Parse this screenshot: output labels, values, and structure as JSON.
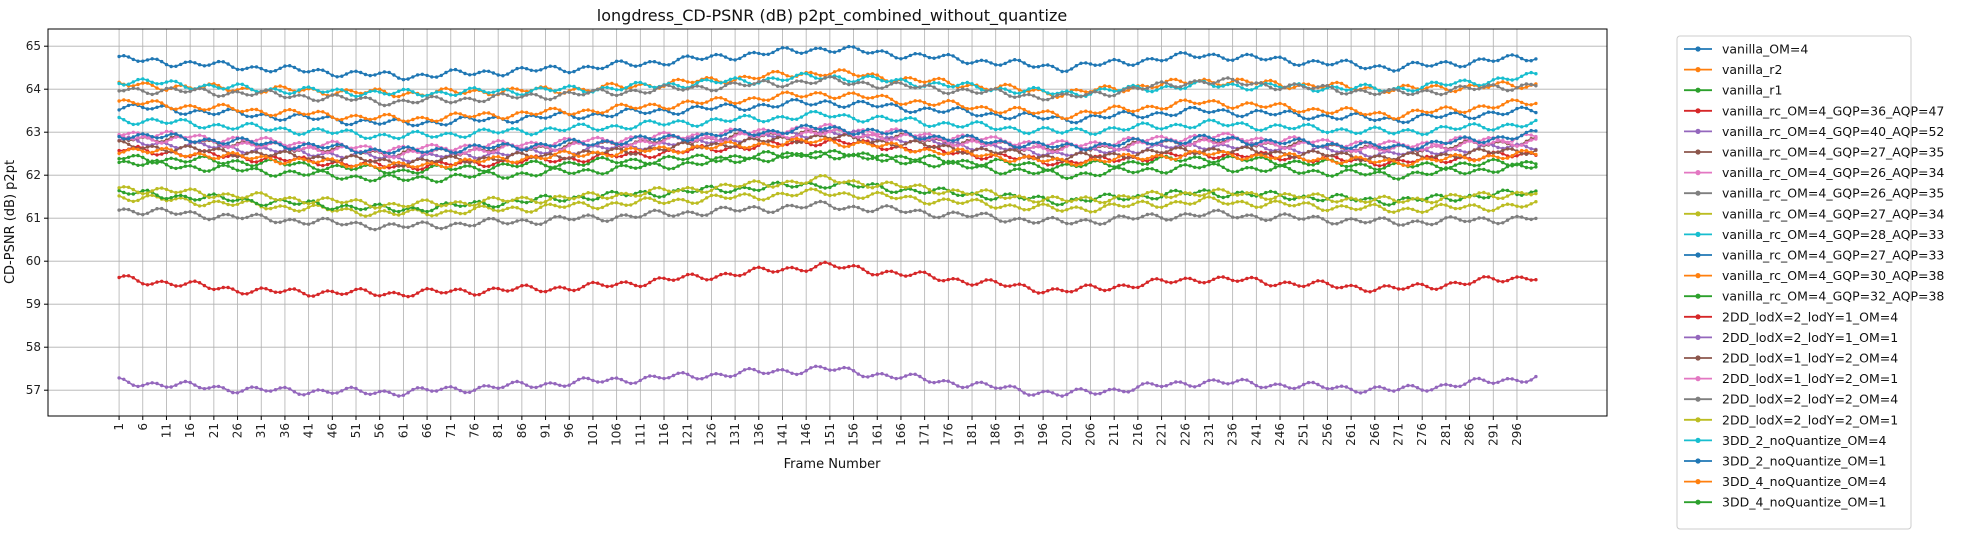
{
  "chart_data": {
    "type": "line",
    "title": "longdress_CD-PSNR (dB) p2pt_combined_without_quantize",
    "xlabel": "Frame Number",
    "ylabel": "CD-PSNR (dB) p2pt",
    "xlim": [
      -14,
      315
    ],
    "ylim": [
      56.4,
      65.4
    ],
    "x_ticks": [
      1,
      6,
      11,
      16,
      21,
      26,
      31,
      36,
      41,
      46,
      51,
      56,
      61,
      66,
      71,
      76,
      81,
      86,
      91,
      96,
      101,
      106,
      111,
      116,
      121,
      126,
      131,
      136,
      141,
      146,
      151,
      156,
      161,
      166,
      171,
      176,
      181,
      186,
      191,
      196,
      201,
      206,
      211,
      216,
      221,
      226,
      231,
      236,
      241,
      246,
      251,
      256,
      261,
      266,
      271,
      276,
      281,
      286,
      291,
      296
    ],
    "y_ticks": [
      57,
      58,
      59,
      60,
      61,
      62,
      63,
      64,
      65
    ],
    "grid": true,
    "legend_position": "outside-right",
    "frame_range": [
      1,
      300
    ],
    "series": [
      {
        "name": "vanilla_OM=4",
        "color": "#1f77b4",
        "values": [
          [
            1,
            64.7
          ],
          [
            30,
            64.5
          ],
          [
            60,
            64.3
          ],
          [
            100,
            64.5
          ],
          [
            150,
            64.95
          ],
          [
            200,
            64.5
          ],
          [
            230,
            64.8
          ],
          [
            270,
            64.5
          ],
          [
            300,
            64.75
          ]
        ]
      },
      {
        "name": "vanilla_r2",
        "color": "#ff7f0e",
        "values": [
          [
            1,
            64.1
          ],
          [
            30,
            64.0
          ],
          [
            60,
            63.9
          ],
          [
            100,
            64.0
          ],
          [
            150,
            64.4
          ],
          [
            200,
            63.9
          ],
          [
            230,
            64.2
          ],
          [
            270,
            64.0
          ],
          [
            300,
            64.1
          ]
        ]
      },
      {
        "name": "vanilla_r1",
        "color": "#2ca02c",
        "values": [
          [
            1,
            62.4
          ],
          [
            30,
            62.3
          ],
          [
            60,
            62.1
          ],
          [
            100,
            62.3
          ],
          [
            150,
            62.5
          ],
          [
            200,
            62.2
          ],
          [
            230,
            62.4
          ],
          [
            270,
            62.2
          ],
          [
            300,
            62.3
          ]
        ]
      },
      {
        "name": "vanilla_rc_OM=4_GQP=36_AQP=47",
        "color": "#d62728",
        "values": [
          [
            1,
            59.6
          ],
          [
            30,
            59.3
          ],
          [
            60,
            59.25
          ],
          [
            100,
            59.4
          ],
          [
            150,
            59.9
          ],
          [
            200,
            59.3
          ],
          [
            230,
            59.6
          ],
          [
            270,
            59.35
          ],
          [
            300,
            59.65
          ]
        ]
      },
      {
        "name": "vanilla_rc_OM=4_GQP=40_AQP=52",
        "color": "#9467bd",
        "values": [
          [
            1,
            57.2
          ],
          [
            30,
            57.0
          ],
          [
            60,
            56.95
          ],
          [
            100,
            57.2
          ],
          [
            150,
            57.5
          ],
          [
            200,
            56.9
          ],
          [
            230,
            57.2
          ],
          [
            270,
            57.0
          ],
          [
            300,
            57.3
          ]
        ]
      },
      {
        "name": "vanilla_rc_OM=4_GQP=27_AQP=35",
        "color": "#8c564b",
        "values": [
          [
            1,
            62.9
          ],
          [
            30,
            62.7
          ],
          [
            60,
            62.5
          ],
          [
            100,
            62.7
          ],
          [
            150,
            63.0
          ],
          [
            200,
            62.6
          ],
          [
            230,
            62.8
          ],
          [
            270,
            62.6
          ],
          [
            300,
            62.8
          ]
        ]
      },
      {
        "name": "vanilla_rc_OM=4_GQP=26_AQP=34",
        "color": "#e377c2",
        "values": [
          [
            1,
            63.0
          ],
          [
            30,
            62.8
          ],
          [
            60,
            62.6
          ],
          [
            100,
            62.8
          ],
          [
            150,
            63.1
          ],
          [
            200,
            62.7
          ],
          [
            230,
            62.9
          ],
          [
            270,
            62.7
          ],
          [
            300,
            62.9
          ]
        ]
      },
      {
        "name": "vanilla_rc_OM=4_GQP=26_AQP=35",
        "color": "#7f7f7f",
        "values": [
          [
            1,
            61.2
          ],
          [
            30,
            61.0
          ],
          [
            60,
            60.8
          ],
          [
            100,
            61.0
          ],
          [
            150,
            61.3
          ],
          [
            200,
            60.9
          ],
          [
            230,
            61.1
          ],
          [
            270,
            60.9
          ],
          [
            300,
            61.0
          ]
        ]
      },
      {
        "name": "vanilla_rc_OM=4_GQP=27_AQP=34",
        "color": "#bcbd22",
        "values": [
          [
            1,
            61.5
          ],
          [
            30,
            61.3
          ],
          [
            60,
            61.1
          ],
          [
            100,
            61.3
          ],
          [
            150,
            61.6
          ],
          [
            200,
            61.2
          ],
          [
            230,
            61.4
          ],
          [
            270,
            61.2
          ],
          [
            300,
            61.3
          ]
        ]
      },
      {
        "name": "vanilla_rc_OM=4_GQP=28_AQP=33",
        "color": "#17becf",
        "values": [
          [
            1,
            64.2
          ],
          [
            30,
            64.0
          ],
          [
            60,
            63.9
          ],
          [
            100,
            64.0
          ],
          [
            150,
            64.3
          ],
          [
            200,
            63.9
          ],
          [
            230,
            64.1
          ],
          [
            270,
            64.0
          ],
          [
            300,
            64.3
          ]
        ]
      },
      {
        "name": "vanilla_rc_OM=4_GQP=27_AQP=33",
        "color": "#1f77b4",
        "values": [
          [
            1,
            63.6
          ],
          [
            30,
            63.4
          ],
          [
            60,
            63.2
          ],
          [
            100,
            63.4
          ],
          [
            150,
            63.7
          ],
          [
            200,
            63.3
          ],
          [
            230,
            63.5
          ],
          [
            270,
            63.3
          ],
          [
            300,
            63.5
          ]
        ]
      },
      {
        "name": "vanilla_rc_OM=4_GQP=30_AQP=38",
        "color": "#ff7f0e",
        "values": [
          [
            1,
            63.7
          ],
          [
            30,
            63.5
          ],
          [
            60,
            63.3
          ],
          [
            100,
            63.5
          ],
          [
            150,
            63.9
          ],
          [
            200,
            63.4
          ],
          [
            230,
            63.7
          ],
          [
            270,
            63.4
          ],
          [
            300,
            63.7
          ]
        ]
      },
      {
        "name": "vanilla_rc_OM=4_GQP=32_AQP=38",
        "color": "#2ca02c",
        "values": [
          [
            1,
            61.6
          ],
          [
            30,
            61.4
          ],
          [
            60,
            61.2
          ],
          [
            100,
            61.5
          ],
          [
            150,
            61.8
          ],
          [
            200,
            61.4
          ],
          [
            230,
            61.6
          ],
          [
            270,
            61.4
          ],
          [
            300,
            61.6
          ]
        ]
      },
      {
        "name": "2DD_lodX=2_lodY=1_OM=4",
        "color": "#d62728",
        "values": [
          [
            1,
            62.6
          ],
          [
            30,
            62.4
          ],
          [
            60,
            62.2
          ],
          [
            100,
            62.4
          ],
          [
            150,
            62.8
          ],
          [
            200,
            62.3
          ],
          [
            230,
            62.5
          ],
          [
            270,
            62.3
          ],
          [
            300,
            62.5
          ]
        ]
      },
      {
        "name": "2DD_lodX=2_lodY=1_OM=1",
        "color": "#9467bd",
        "values": [
          [
            1,
            62.8
          ],
          [
            30,
            62.6
          ],
          [
            60,
            62.4
          ],
          [
            100,
            62.6
          ],
          [
            150,
            63.0
          ],
          [
            200,
            62.5
          ],
          [
            230,
            62.7
          ],
          [
            270,
            62.5
          ],
          [
            300,
            62.7
          ]
        ]
      },
      {
        "name": "2DD_lodX=1_lodY=2_OM=4",
        "color": "#8c564b",
        "values": [
          [
            1,
            62.7
          ],
          [
            30,
            62.5
          ],
          [
            60,
            62.3
          ],
          [
            100,
            62.5
          ],
          [
            150,
            62.9
          ],
          [
            200,
            62.4
          ],
          [
            230,
            62.6
          ],
          [
            270,
            62.4
          ],
          [
            300,
            62.6
          ]
        ]
      },
      {
        "name": "2DD_lodX=1_lodY=2_OM=1",
        "color": "#e377c2",
        "values": [
          [
            1,
            62.9
          ],
          [
            30,
            62.7
          ],
          [
            60,
            62.5
          ],
          [
            100,
            62.7
          ],
          [
            150,
            63.0
          ],
          [
            200,
            62.6
          ],
          [
            230,
            62.8
          ],
          [
            270,
            62.6
          ],
          [
            300,
            62.8
          ]
        ]
      },
      {
        "name": "2DD_lodX=2_lodY=2_OM=4",
        "color": "#7f7f7f",
        "values": [
          [
            1,
            64.0
          ],
          [
            30,
            63.9
          ],
          [
            60,
            63.7
          ],
          [
            100,
            63.9
          ],
          [
            150,
            64.2
          ],
          [
            200,
            63.8
          ],
          [
            230,
            64.2
          ],
          [
            270,
            63.9
          ],
          [
            300,
            64.1
          ]
        ]
      },
      {
        "name": "2DD_lodX=2_lodY=2_OM=1",
        "color": "#bcbd22",
        "values": [
          [
            1,
            61.7
          ],
          [
            30,
            61.5
          ],
          [
            60,
            61.3
          ],
          [
            100,
            61.5
          ],
          [
            150,
            61.9
          ],
          [
            200,
            61.4
          ],
          [
            230,
            61.6
          ],
          [
            270,
            61.4
          ],
          [
            300,
            61.6
          ]
        ]
      },
      {
        "name": "3DD_2_noQuantize_OM=4",
        "color": "#17becf",
        "values": [
          [
            1,
            63.3
          ],
          [
            30,
            63.1
          ],
          [
            60,
            62.9
          ],
          [
            100,
            63.1
          ],
          [
            150,
            63.4
          ],
          [
            200,
            63.0
          ],
          [
            230,
            63.2
          ],
          [
            270,
            63.0
          ],
          [
            300,
            63.2
          ]
        ]
      },
      {
        "name": "3DD_2_noQuantize_OM=1",
        "color": "#1f77b4",
        "values": [
          [
            1,
            62.95
          ],
          [
            30,
            62.75
          ],
          [
            60,
            62.55
          ],
          [
            100,
            62.75
          ],
          [
            150,
            63.1
          ],
          [
            200,
            62.65
          ],
          [
            230,
            62.85
          ],
          [
            270,
            62.65
          ],
          [
            300,
            62.95
          ]
        ]
      },
      {
        "name": "3DD_4_noQuantize_OM=4",
        "color": "#ff7f0e",
        "values": [
          [
            1,
            62.6
          ],
          [
            30,
            62.4
          ],
          [
            60,
            62.2
          ],
          [
            100,
            62.5
          ],
          [
            150,
            62.8
          ],
          [
            200,
            62.3
          ],
          [
            230,
            62.5
          ],
          [
            270,
            62.3
          ],
          [
            300,
            62.5
          ]
        ]
      },
      {
        "name": "3DD_4_noQuantize_OM=1",
        "color": "#2ca02c",
        "values": [
          [
            1,
            62.3
          ],
          [
            30,
            62.1
          ],
          [
            60,
            61.9
          ],
          [
            100,
            62.1
          ],
          [
            150,
            62.5
          ],
          [
            200,
            62.0
          ],
          [
            230,
            62.2
          ],
          [
            270,
            62.0
          ],
          [
            300,
            62.2
          ]
        ]
      }
    ]
  }
}
